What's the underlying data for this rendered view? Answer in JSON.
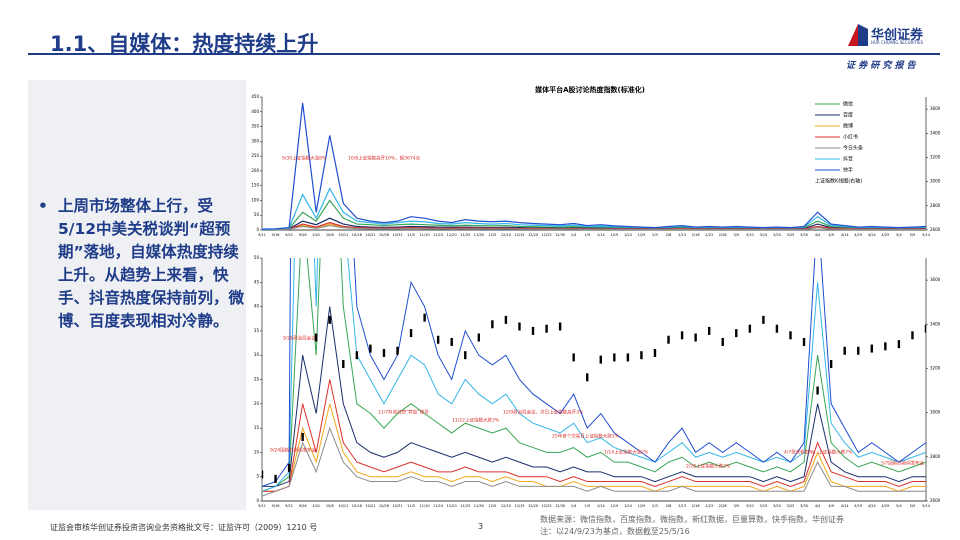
{
  "header": {
    "title": "1.1、自媒体：热度持续上升",
    "logo": "华创证券",
    "logo_en": "HUA CHUANG SECURITIES",
    "tag": "证 券 研 究 报 告"
  },
  "bullet": "上周市场整体上行，受5/12中美关税谈判“超预期”落地，自媒体热度持续上升。从趋势上来看，快手、抖音热度保持前列，微博、百度表现相对冷静。",
  "footer": {
    "license": "证监会审核华创证券投资咨询业务资格批文号：证监许可（2009）1210 号",
    "page": "3",
    "source": "数据来源：微信指数，百度指数，微指数，新红数据，巨量算数，快手指数，华创证券",
    "note": "注：以24/9/23为基点，数据截至25/5/16"
  },
  "chart_data": {
    "type": "line",
    "title": "媒体平台A股讨论热度指数(标准化)",
    "categories": [
      "9/11",
      "9/16",
      "9/21",
      "9/26",
      "10/1",
      "10/6",
      "10/11",
      "10/16",
      "10/21",
      "10/26",
      "10/31",
      "11/5",
      "11/10",
      "11/15",
      "11/20",
      "11/25",
      "11/30",
      "12/5",
      "12/10",
      "12/15",
      "12/20",
      "12/25",
      "12/30",
      "1/4",
      "1/9",
      "1/14",
      "1/19",
      "1/24",
      "1/29",
      "2/3",
      "2/8",
      "2/13",
      "2/18",
      "2/23",
      "2/28",
      "3/5",
      "3/10",
      "3/15",
      "3/20",
      "3/25",
      "3/30",
      "4/4",
      "4/9",
      "4/14",
      "4/19",
      "4/24",
      "4/29",
      "5/4",
      "5/9",
      "5/14"
    ],
    "panels": [
      {
        "ylim": [
          0,
          450
        ],
        "yticks": [
          0,
          50,
          100,
          150,
          200,
          250,
          300,
          350,
          400,
          450
        ]
      },
      {
        "ylim": [
          0,
          50
        ],
        "yticks": [
          0,
          5,
          10,
          15,
          20,
          25,
          30,
          35,
          40,
          45,
          50
        ]
      }
    ],
    "y2lim": [
      2600,
      3700
    ],
    "y2ticks": [
      2600,
      2800,
      3000,
      3200,
      3400,
      3600
    ],
    "series": [
      {
        "name": "微信",
        "color": "#3aa655",
        "values": [
          2,
          3,
          5,
          60,
          30,
          100,
          40,
          20,
          18,
          15,
          18,
          20,
          18,
          16,
          14,
          16,
          15,
          14,
          15,
          12,
          11,
          10,
          10,
          11,
          9,
          10,
          8,
          8,
          7,
          6,
          8,
          9,
          7,
          8,
          7,
          8,
          7,
          6,
          7,
          6,
          8,
          30,
          12,
          9,
          7,
          8,
          7,
          6,
          7,
          8
        ]
      },
      {
        "name": "百度",
        "color": "#1a2d6b",
        "values": [
          3,
          3,
          4,
          30,
          18,
          40,
          20,
          12,
          10,
          9,
          10,
          12,
          11,
          10,
          9,
          10,
          9,
          8,
          9,
          8,
          7,
          7,
          6,
          7,
          6,
          6,
          5,
          5,
          5,
          4,
          5,
          6,
          5,
          5,
          5,
          5,
          5,
          4,
          5,
          4,
          5,
          20,
          8,
          6,
          5,
          5,
          5,
          4,
          5,
          5
        ]
      },
      {
        "name": "微博",
        "color": "#f2a81d",
        "values": [
          2,
          2,
          3,
          15,
          8,
          20,
          10,
          6,
          5,
          5,
          5,
          6,
          5,
          5,
          4,
          5,
          5,
          4,
          5,
          4,
          4,
          3,
          3,
          4,
          3,
          3,
          3,
          3,
          3,
          2,
          3,
          3,
          3,
          3,
          3,
          3,
          3,
          2,
          3,
          2,
          3,
          10,
          4,
          3,
          3,
          3,
          3,
          2,
          3,
          3
        ]
      },
      {
        "name": "小红书",
        "color": "#d9302c",
        "values": [
          2,
          2,
          3,
          20,
          10,
          25,
          12,
          8,
          7,
          6,
          7,
          8,
          7,
          6,
          6,
          7,
          6,
          6,
          6,
          5,
          5,
          5,
          4,
          5,
          4,
          4,
          4,
          4,
          4,
          3,
          4,
          5,
          4,
          4,
          4,
          4,
          4,
          3,
          4,
          3,
          4,
          12,
          6,
          5,
          4,
          4,
          4,
          3,
          4,
          4
        ]
      },
      {
        "name": "今日头条",
        "color": "#8c8c8c",
        "values": [
          1,
          2,
          3,
          12,
          6,
          15,
          8,
          5,
          4,
          4,
          4,
          5,
          4,
          4,
          3,
          4,
          4,
          3,
          4,
          3,
          3,
          3,
          3,
          3,
          2,
          3,
          2,
          2,
          2,
          2,
          2,
          3,
          2,
          2,
          2,
          2,
          2,
          2,
          2,
          2,
          2,
          8,
          3,
          3,
          2,
          2,
          2,
          2,
          2,
          2
        ]
      },
      {
        "name": "抖音",
        "color": "#35b6e8",
        "values": [
          2,
          3,
          6,
          120,
          40,
          140,
          60,
          30,
          25,
          20,
          25,
          30,
          28,
          22,
          20,
          25,
          22,
          20,
          22,
          18,
          16,
          15,
          14,
          16,
          12,
          13,
          11,
          10,
          9,
          8,
          10,
          12,
          9,
          10,
          9,
          10,
          9,
          8,
          9,
          8,
          10,
          45,
          16,
          12,
          9,
          10,
          9,
          8,
          9,
          10
        ]
      },
      {
        "name": "快手",
        "color": "#1f4fd0",
        "values": [
          3,
          4,
          8,
          430,
          60,
          320,
          90,
          40,
          30,
          25,
          30,
          45,
          40,
          30,
          25,
          35,
          30,
          28,
          30,
          25,
          22,
          20,
          18,
          22,
          15,
          18,
          14,
          12,
          10,
          8,
          12,
          15,
          10,
          12,
          10,
          12,
          10,
          8,
          10,
          8,
          12,
          60,
          20,
          15,
          10,
          12,
          10,
          8,
          10,
          12
        ]
      },
      {
        "name": "上证指数K线图(右轴)",
        "color": "#000000",
        "axis": "y2",
        "values": [
          2720,
          2700,
          2750,
          2890,
          3340,
          3420,
          3220,
          3260,
          3290,
          3270,
          3280,
          3360,
          3430,
          3330,
          3320,
          3260,
          3340,
          3400,
          3420,
          3390,
          3370,
          3380,
          3390,
          3250,
          3160,
          3240,
          3250,
          3250,
          3260,
          3270,
          3330,
          3350,
          3340,
          3370,
          3320,
          3360,
          3380,
          3420,
          3380,
          3350,
          3320,
          3100,
          3220,
          3280,
          3280,
          3290,
          3300,
          3310,
          3350,
          3380
        ]
      }
    ],
    "annotations": [
      "9/30上证指数大涨8%",
      "10/8上证指数高开10%，报3674点",
      "9/26政治局会议",
      "9/24国新办新闻发布会",
      "11/7抖音封禁“荐股”账号",
      "11/22上证指数大跌3%",
      "12/9政治局会议，次日上证指数高开3%",
      "25年首个交易日上证指数大跌3%",
      "1/14上证指数大涨2%",
      "2/28上证指数大跌2%",
      "4/7受关税影响，上证指数大跌7%",
      "5/7国新办新闻发布会"
    ]
  }
}
